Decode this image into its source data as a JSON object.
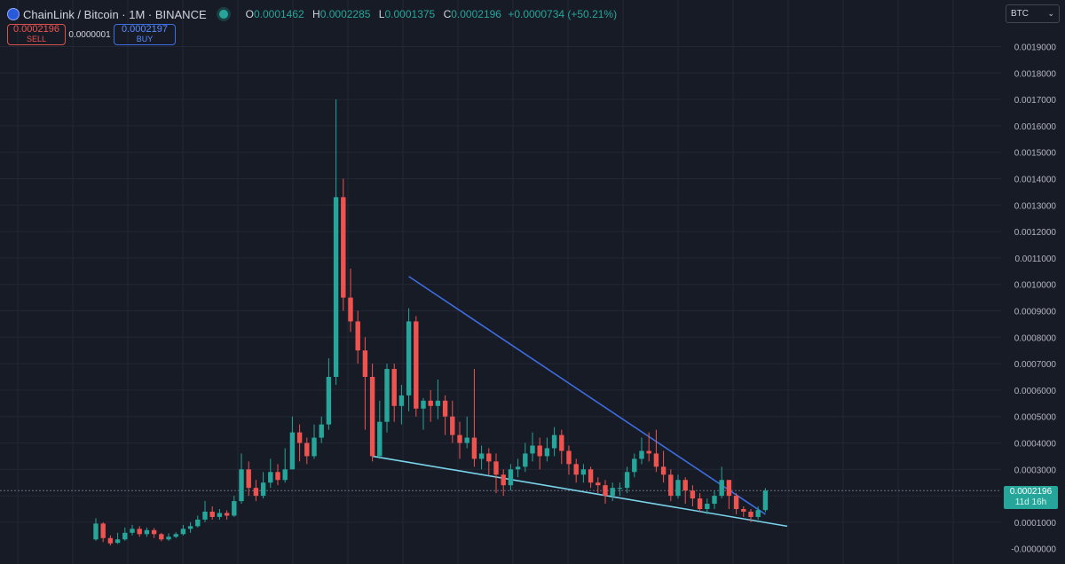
{
  "header": {
    "title": "ChainLink / Bitcoin · 1M · BINANCE",
    "ohlc": {
      "o_key": "O",
      "o": "0.0001462",
      "h_key": "H",
      "h": "0.0002285",
      "l_key": "L",
      "l": "0.0001375",
      "c_key": "C",
      "c": "0.0002196",
      "change": "+0.0000734 (+50.21%)"
    }
  },
  "trade": {
    "sell_price": "0.0002196",
    "sell_label": "SELL",
    "spread": "0.0000001",
    "buy_price": "0.0002197",
    "buy_label": "BUY"
  },
  "currency": {
    "selected": "BTC"
  },
  "last_price": {
    "value": "0.0002196",
    "countdown": "11d 16h"
  },
  "colors": {
    "background": "#171b26",
    "up": "#26a69a",
    "down": "#ef5350",
    "upper_trendline": "#3d6de0",
    "lower_trendline": "#7ad3ea",
    "grid": "#232735"
  },
  "chart_data": {
    "type": "candlestick",
    "title": "ChainLink / Bitcoin · 1M · BINANCE",
    "interval": "1M",
    "ylim": [
      -1e-05,
      0.002
    ],
    "y_ticks": [
      "0.0001000",
      "0.0002000",
      "0.0003000",
      "0.0004000",
      "0.0005000",
      "0.0006000",
      "0.0007000",
      "0.0008000",
      "0.0009000",
      "0.0010000",
      "0.0011000",
      "0.0012000",
      "0.0013000",
      "0.0014000",
      "0.0015000",
      "0.0016000",
      "0.0017000",
      "0.0018000",
      "0.0019000"
    ],
    "y_bottom_tick": "-0.0000000",
    "grid": true,
    "candles": [
      [
        3.5e-05,
        9.5e-05,
        0.000115,
        3e-05
      ],
      [
        9.5e-05,
        4e-05,
        0.0001,
        2.5e-05
      ],
      [
        4e-05,
        2e-05,
        5e-05,
        1.2e-05
      ],
      [
        2.2e-05,
        3.5e-05,
        6e-05,
        1.8e-05
      ],
      [
        3.5e-05,
        6e-05,
        8e-05,
        3e-05
      ],
      [
        6e-05,
        7.5e-05,
        9e-05,
        5e-05
      ],
      [
        7.5e-05,
        5.5e-05,
        8.5e-05,
        4.5e-05
      ],
      [
        5.5e-05,
        7e-05,
        8e-05,
        4.5e-05
      ],
      [
        7e-05,
        5.5e-05,
        7.8e-05,
        4e-05
      ],
      [
        5.5e-05,
        3.5e-05,
        6e-05,
        2.8e-05
      ],
      [
        3.5e-05,
        4.5e-05,
        5.8e-05,
        3e-05
      ],
      [
        4.5e-05,
        5.5e-05,
        6.2e-05,
        4e-05
      ],
      [
        5.5e-05,
        7.5e-05,
        9e-05,
        5e-05
      ],
      [
        7.5e-05,
        8.5e-05,
        0.0001,
        6e-05
      ],
      [
        8.5e-05,
        0.00011,
        0.000125,
        8e-05
      ],
      [
        0.00011,
        0.00014,
        0.00018,
        0.0001
      ],
      [
        0.00014,
        0.00012,
        0.00016,
        0.00011
      ],
      [
        0.00012,
        0.000135,
        0.00015,
        0.00011
      ],
      [
        0.000135,
        0.000125,
        0.000145,
        0.00011
      ],
      [
        0.000125,
        0.00018,
        0.0002,
        0.00012
      ],
      [
        0.00018,
        0.0003,
        0.00036,
        0.00017
      ],
      [
        0.0003,
        0.00023,
        0.00033,
        0.0002
      ],
      [
        0.00023,
        0.0002,
        0.00026,
        0.00018
      ],
      [
        0.0002,
        0.00025,
        0.00029,
        0.00019
      ],
      [
        0.00025,
        0.00029,
        0.00034,
        0.00023
      ],
      [
        0.00029,
        0.00026,
        0.00032,
        0.00024
      ],
      [
        0.00026,
        0.0003,
        0.00038,
        0.00025
      ],
      [
        0.0003,
        0.00044,
        0.0005,
        0.0003
      ],
      [
        0.00044,
        0.0004,
        0.00047,
        0.00033
      ],
      [
        0.0004,
        0.00035,
        0.00042,
        0.00032
      ],
      [
        0.00035,
        0.00042,
        0.00047,
        0.00034
      ],
      [
        0.00042,
        0.00047,
        0.0005,
        0.0004
      ],
      [
        0.00047,
        0.00065,
        0.00072,
        0.00045
      ],
      [
        0.00065,
        0.00133,
        0.0017,
        0.00062
      ],
      [
        0.00133,
        0.00095,
        0.0014,
        0.0009
      ],
      [
        0.00095,
        0.00086,
        0.00106,
        0.00082
      ],
      [
        0.00086,
        0.00075,
        0.0009,
        0.0007
      ],
      [
        0.00075,
        0.00065,
        0.0008,
        0.00045
      ],
      [
        0.00065,
        0.00035,
        0.0007,
        0.00033
      ],
      [
        0.00035,
        0.00048,
        0.00056,
        0.00034
      ],
      [
        0.00048,
        0.00068,
        0.0007,
        0.00044
      ],
      [
        0.00068,
        0.00054,
        0.0007,
        0.00048
      ],
      [
        0.00054,
        0.00058,
        0.00062,
        0.00047
      ],
      [
        0.00058,
        0.00086,
        0.00091,
        0.00052
      ],
      [
        0.00086,
        0.00053,
        0.00088,
        0.0005
      ],
      [
        0.00053,
        0.00056,
        0.00057,
        0.00045
      ],
      [
        0.00056,
        0.00054,
        0.0006,
        0.00048
      ],
      [
        0.00054,
        0.00056,
        0.00064,
        0.00049
      ],
      [
        0.00056,
        0.0005,
        0.00058,
        0.00043
      ],
      [
        0.0005,
        0.00043,
        0.00056,
        0.0004
      ],
      [
        0.00043,
        0.0004,
        0.00048,
        0.00034
      ],
      [
        0.0004,
        0.00042,
        0.0005,
        0.00038
      ],
      [
        0.00042,
        0.00034,
        0.00068,
        0.00031
      ],
      [
        0.00034,
        0.00036,
        0.00039,
        0.0003
      ],
      [
        0.00036,
        0.00033,
        0.00038,
        0.00028
      ],
      [
        0.00033,
        0.00028,
        0.00036,
        0.00021
      ],
      [
        0.00028,
        0.00024,
        0.0003,
        0.0002
      ],
      [
        0.00024,
        0.0003,
        0.00032,
        0.00022
      ],
      [
        0.0003,
        0.00031,
        0.00034,
        0.00027
      ],
      [
        0.00031,
        0.00036,
        0.0004,
        0.00029
      ],
      [
        0.00036,
        0.00039,
        0.00044,
        0.00033
      ],
      [
        0.00039,
        0.00035,
        0.00042,
        0.0003
      ],
      [
        0.00035,
        0.00038,
        0.00042,
        0.00033
      ],
      [
        0.00038,
        0.00043,
        0.00046,
        0.00035
      ],
      [
        0.00043,
        0.00037,
        0.00045,
        0.00032
      ],
      [
        0.00037,
        0.00032,
        0.00039,
        0.00028
      ],
      [
        0.00032,
        0.00028,
        0.00034,
        0.00025
      ],
      [
        0.00028,
        0.0003,
        0.00032,
        0.00025
      ],
      [
        0.0003,
        0.00025,
        0.00031,
        0.00023
      ],
      [
        0.00025,
        0.00024,
        0.00027,
        0.00021
      ],
      [
        0.00024,
        0.0002,
        0.00026,
        0.00017
      ],
      [
        0.0002,
        0.00023,
        0.00025,
        0.00018
      ],
      [
        0.00023,
        0.00023,
        0.00025,
        0.0002
      ],
      [
        0.00023,
        0.00029,
        0.00031,
        0.00021
      ],
      [
        0.00029,
        0.00034,
        0.00036,
        0.00027
      ],
      [
        0.00034,
        0.00037,
        0.00042,
        0.00032
      ],
      [
        0.00037,
        0.00036,
        0.00044,
        0.00033
      ],
      [
        0.00036,
        0.00031,
        0.00045,
        0.00029
      ],
      [
        0.00031,
        0.00028,
        0.00037,
        0.00025
      ],
      [
        0.00028,
        0.0002,
        0.0003,
        0.00018
      ],
      [
        0.0002,
        0.00026,
        0.00028,
        0.00019
      ],
      [
        0.00026,
        0.00022,
        0.00027,
        0.00017
      ],
      [
        0.00022,
        0.00019,
        0.00024,
        0.00016
      ],
      [
        0.00019,
        0.00015,
        0.00021,
        0.00014
      ],
      [
        0.00015,
        0.00017,
        0.00019,
        0.00013
      ],
      [
        0.00017,
        0.0002,
        0.00022,
        0.00015
      ],
      [
        0.0002,
        0.00026,
        0.00031,
        0.00019
      ],
      [
        0.00026,
        0.0002,
        0.00026,
        0.00015
      ],
      [
        0.0002,
        0.00015,
        0.00021,
        0.00013
      ],
      [
        0.00015,
        0.00014,
        0.00016,
        0.00012
      ],
      [
        0.00014,
        0.00012,
        0.00015,
        0.0001
      ],
      [
        0.00012,
        0.000146,
        0.00016,
        0.00011
      ],
      [
        0.000146,
        0.00022,
        0.000229,
        0.000138
      ]
    ],
    "last_price": 0.0002196,
    "trendlines": [
      {
        "points": [
          [
            43,
            0.00103
          ],
          [
            92,
            0.00013
          ]
        ],
        "color": "#3d6de0"
      },
      [
        [
          38,
          0.00035
        ],
        [
          95,
          8.5e-05
        ]
      ]
    ]
  }
}
